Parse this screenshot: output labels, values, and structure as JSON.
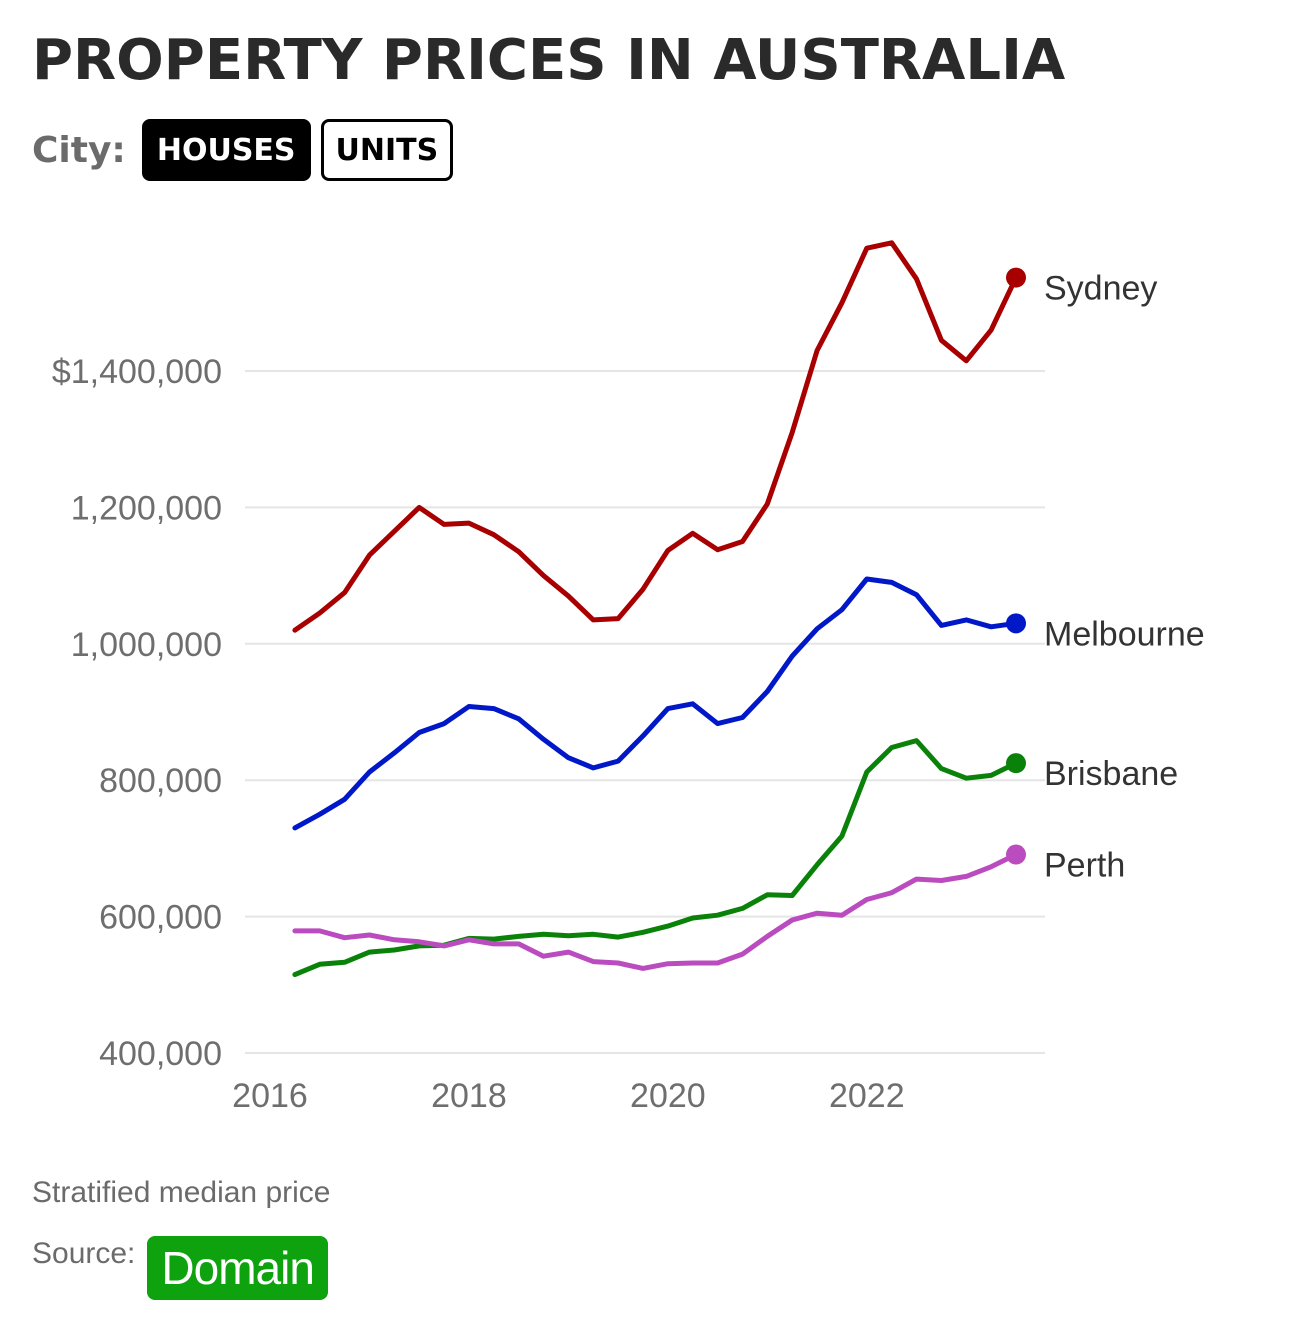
{
  "header": {
    "title": "PROPERTY PRICES IN AUSTRALIA",
    "filter_label": "City:",
    "toggles": [
      "HOUSES",
      "UNITS"
    ]
  },
  "footer": {
    "note": "Stratified median price",
    "source_label": "Source:",
    "source_name": "Domain"
  },
  "colors": {
    "sydney": "#a80000",
    "melbourne": "#0018c8",
    "brisbane": "#0a820a",
    "perth": "#bb4cc0",
    "grid": "#e5e5e5",
    "axis_text": "#6e6e6e",
    "label_text": "#333333",
    "source_logo": "#0ea20e"
  },
  "chart_data": {
    "type": "line",
    "title": "PROPERTY PRICES IN AUSTRALIA",
    "xlabel": "",
    "ylabel": "",
    "xlim": [
      2016,
      2023.5
    ],
    "ylim": [
      400000,
      1600000
    ],
    "x_ticks": [
      2016,
      2018,
      2020,
      2022
    ],
    "y_ticks": [
      {
        "value": 400000,
        "label": "400,000"
      },
      {
        "value": 600000,
        "label": "600,000"
      },
      {
        "value": 800000,
        "label": "800,000"
      },
      {
        "value": 1000000,
        "label": "1,000,000"
      },
      {
        "value": 1200000,
        "label": "1,200,000"
      },
      {
        "value": 1400000,
        "label": "$1,400,000"
      }
    ],
    "grid": true,
    "legend": "end-of-line labels",
    "x": [
      2016.25,
      2016.5,
      2016.75,
      2017.0,
      2017.25,
      2017.5,
      2017.75,
      2018.0,
      2018.25,
      2018.5,
      2018.75,
      2019.0,
      2019.25,
      2019.5,
      2019.75,
      2020.0,
      2020.25,
      2020.5,
      2020.75,
      2021.0,
      2021.25,
      2021.5,
      2021.75,
      2022.0,
      2022.25,
      2022.5,
      2022.75,
      2023.0,
      2023.25,
      2023.5
    ],
    "series": [
      {
        "name": "Sydney",
        "color": "#a80000",
        "values": [
          1020000,
          1045000,
          1075000,
          1130000,
          1165000,
          1200000,
          1175000,
          1177000,
          1160000,
          1135000,
          1100000,
          1070000,
          1035000,
          1037000,
          1080000,
          1137000,
          1162000,
          1138000,
          1150000,
          1205000,
          1310000,
          1430000,
          1500000,
          1580000,
          1588000,
          1535000,
          1445000,
          1415000,
          1460000,
          1537000
        ]
      },
      {
        "name": "Melbourne",
        "color": "#0018c8",
        "values": [
          730000,
          750000,
          772000,
          812000,
          840000,
          870000,
          883000,
          908000,
          905000,
          890000,
          860000,
          833000,
          818000,
          828000,
          865000,
          905000,
          912000,
          883000,
          892000,
          930000,
          982000,
          1022000,
          1050000,
          1095000,
          1090000,
          1072000,
          1027000,
          1035000,
          1025000,
          1030000
        ]
      },
      {
        "name": "Brisbane",
        "color": "#0a820a",
        "values": [
          515000,
          530000,
          533000,
          548000,
          551000,
          557000,
          558000,
          568000,
          567000,
          571000,
          574000,
          572000,
          574000,
          570000,
          577000,
          586000,
          598000,
          602000,
          612000,
          632000,
          631000,
          676000,
          718000,
          812000,
          848000,
          858000,
          817000,
          803000,
          807000,
          825000
        ]
      },
      {
        "name": "Perth",
        "color": "#bb4cc0",
        "values": [
          579000,
          579000,
          569000,
          573000,
          566000,
          563000,
          557000,
          566000,
          560000,
          560000,
          542000,
          548000,
          534000,
          532000,
          524000,
          531000,
          532000,
          532000,
          545000,
          571000,
          595000,
          605000,
          602000,
          625000,
          635000,
          655000,
          653000,
          659000,
          673000,
          691000
        ]
      }
    ]
  }
}
